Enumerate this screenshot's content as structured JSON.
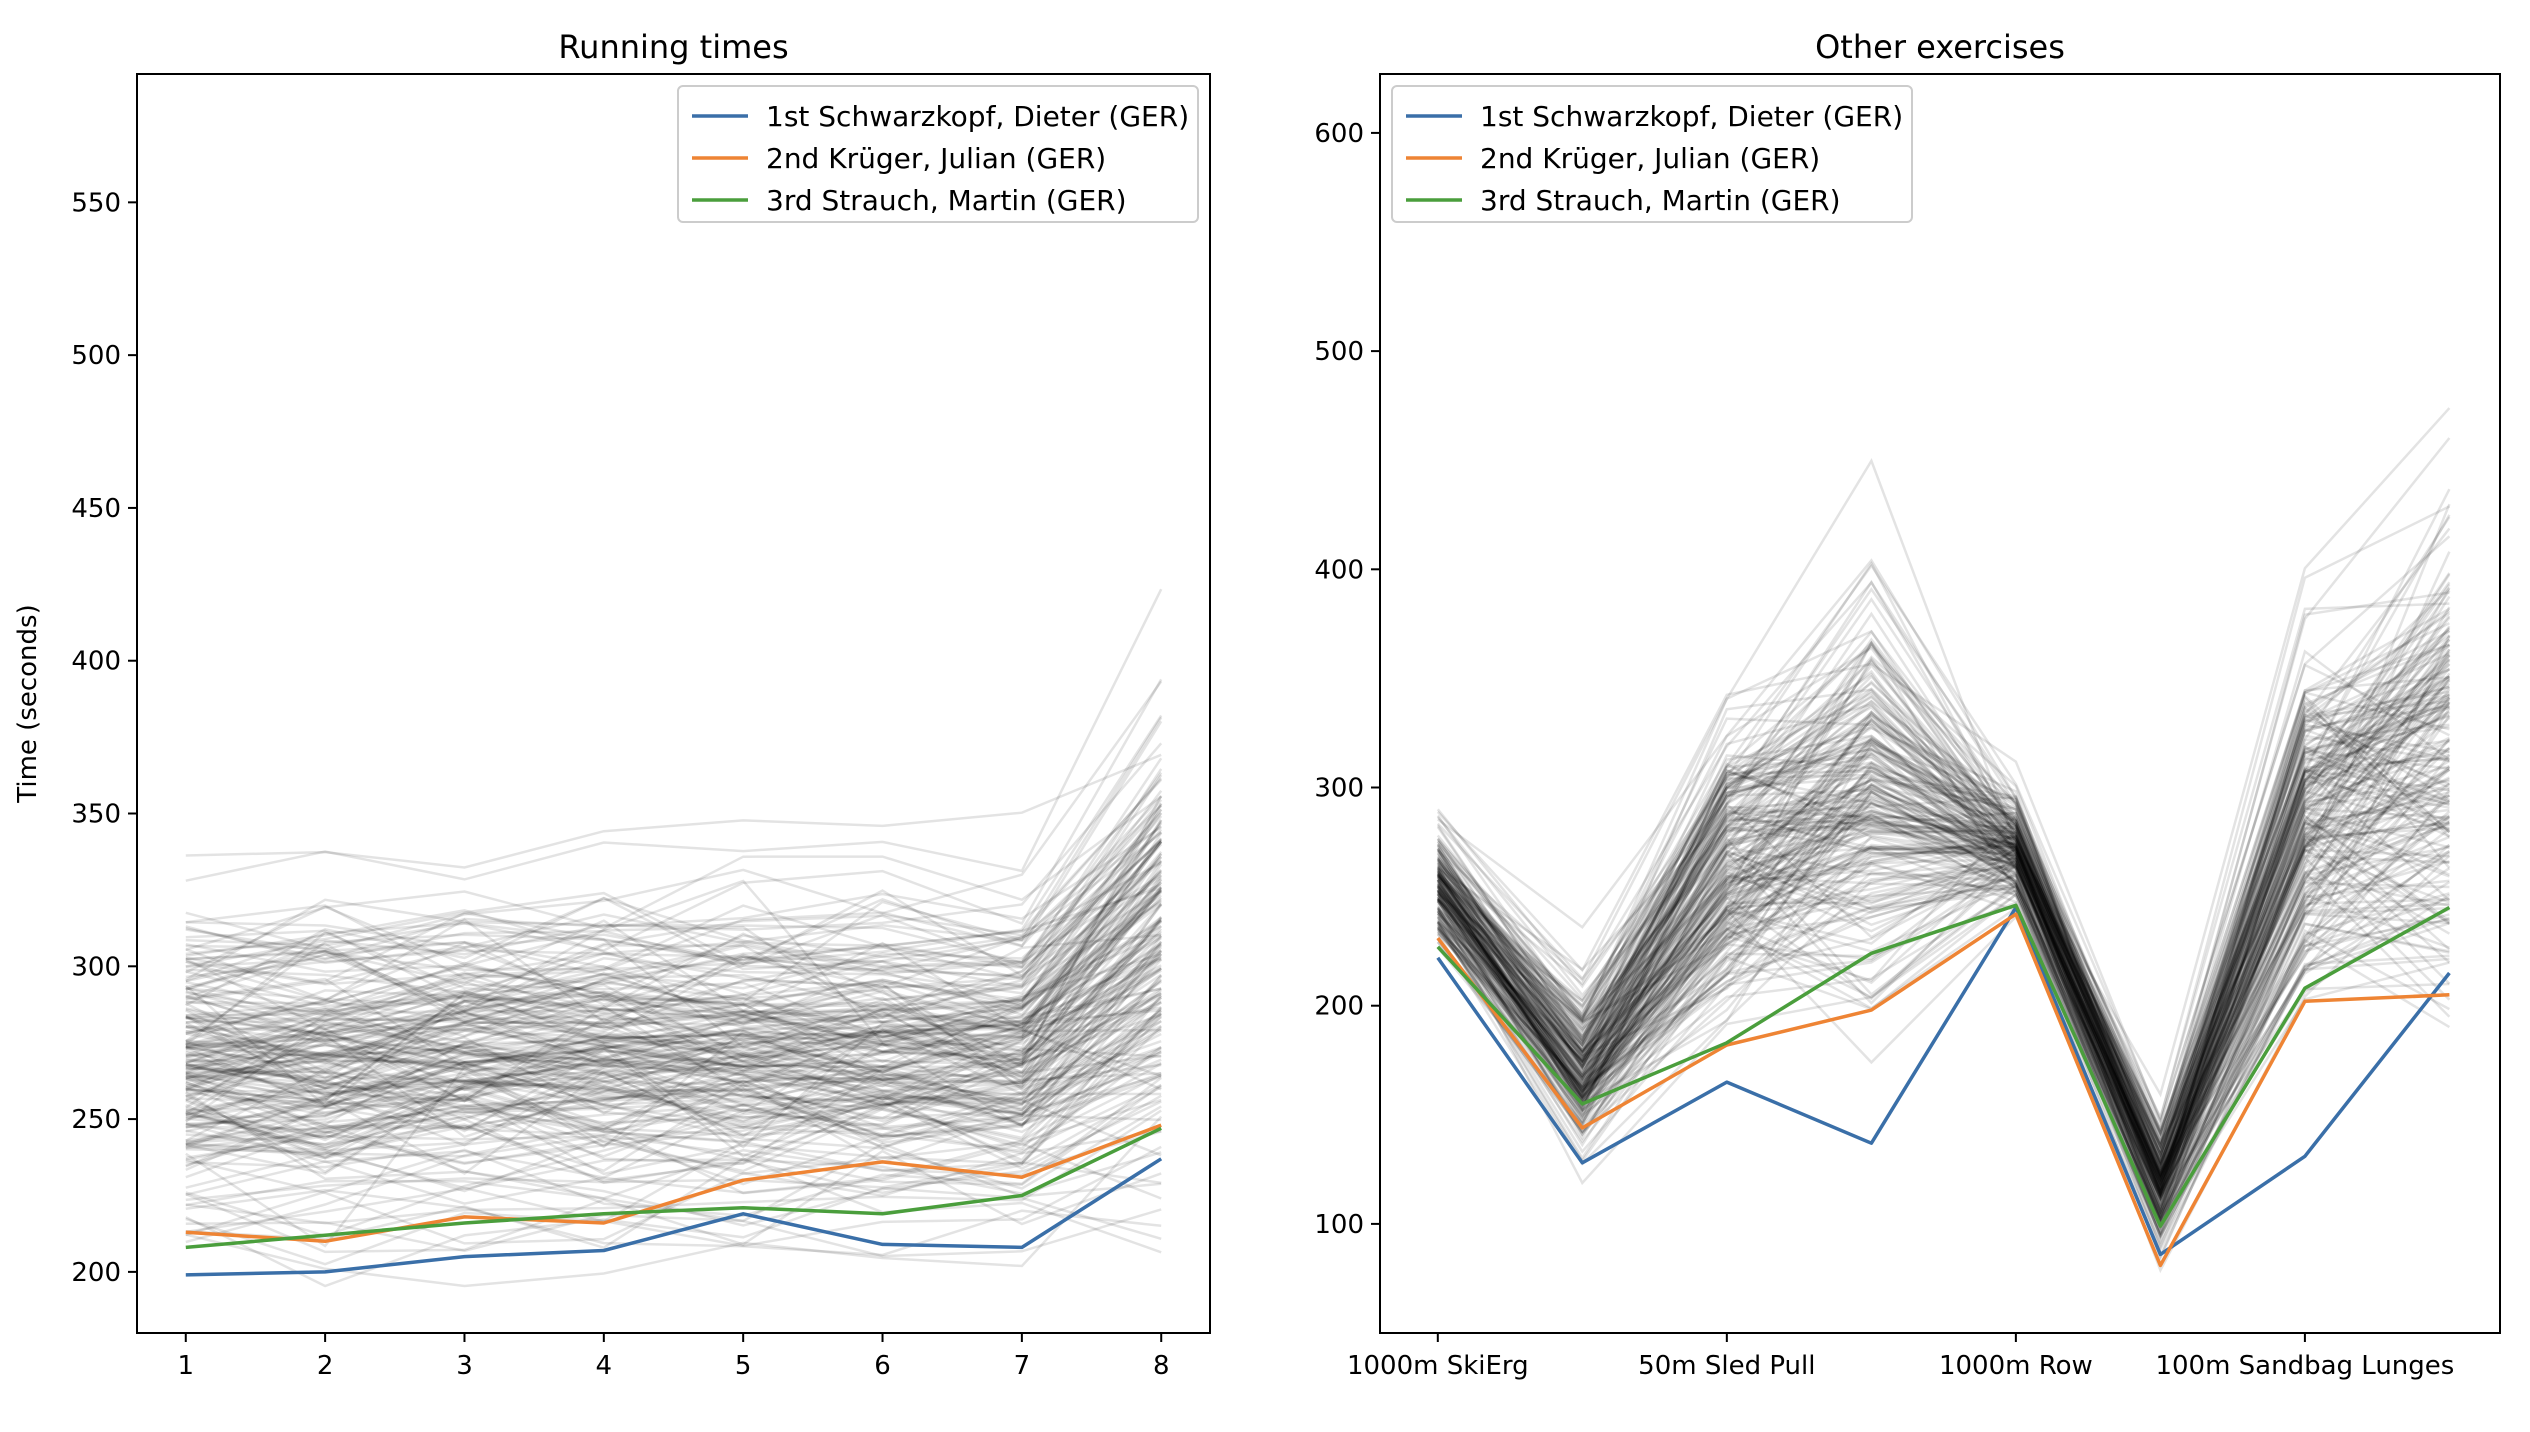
{
  "chart_data": [
    {
      "type": "line",
      "title": "Running times",
      "xlabel": "",
      "ylabel": "Time (seconds)",
      "x": [
        1,
        2,
        3,
        4,
        5,
        6,
        7,
        8
      ],
      "xticks": [
        "1",
        "2",
        "3",
        "4",
        "5",
        "6",
        "7",
        "8"
      ],
      "ylim": [
        180,
        592
      ],
      "yticks": [
        200,
        250,
        300,
        350,
        400,
        450,
        500,
        550
      ],
      "grid": false,
      "legend_position": "top-right",
      "background_series_note": "",
      "highlighted_series": [
        {
          "name": "1st Schwarzkopf, Dieter (GER)",
          "color": "#3a6fa8",
          "values": [
            199,
            200,
            205,
            207,
            219,
            209,
            208,
            237
          ]
        },
        {
          "name": "2nd Krüger, Julian (GER)",
          "color": "#ee8434",
          "values": [
            213,
            210,
            218,
            216,
            230,
            236,
            231,
            248
          ]
        },
        {
          "name": "3rd Strauch, Martin (GER)",
          "color": "#4a9e3c",
          "values": [
            208,
            212,
            216,
            219,
            221,
            219,
            225,
            247
          ]
        }
      ]
    },
    {
      "type": "line",
      "title": "Other exercises",
      "xlabel": "",
      "ylabel": "",
      "x": [
        1,
        2,
        3,
        4,
        5,
        6,
        7,
        8
      ],
      "xticks": [
        "1000m SkiErg",
        "50m Sled Pull",
        "1000m Row",
        "100m Sandbag Lunges"
      ],
      "xtick_positions": [
        1,
        3,
        5,
        7
      ],
      "ylim": [
        50,
        627
      ],
      "yticks": [
        100,
        200,
        300,
        400,
        500,
        600
      ],
      "grid": false,
      "legend_position": "top-left",
      "highlighted_series": [
        {
          "name": "1st Schwarzkopf, Dieter (GER)",
          "color": "#3a6fa8",
          "values": [
            222,
            128,
            165,
            137,
            245,
            86,
            131,
            215
          ]
        },
        {
          "name": "2nd Krüger, Julian (GER)",
          "color": "#ee8434",
          "values": [
            231,
            144,
            182,
            198,
            242,
            81,
            202,
            205
          ]
        },
        {
          "name": "3rd Strauch, Martin (GER)",
          "color": "#4a9e3c",
          "values": [
            227,
            155,
            183,
            224,
            246,
            99,
            208,
            245
          ]
        }
      ]
    }
  ]
}
